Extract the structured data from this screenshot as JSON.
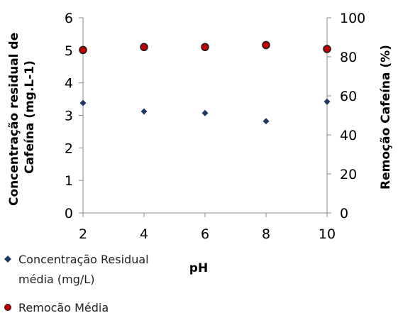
{
  "chart_data": {
    "type": "scatter",
    "xlabel": "pH",
    "ylabel_left": "Concentração residual de Cafeína (mg.L-1)",
    "ylabel_left_lines": [
      "Concentração residual de",
      "Cafeína (mg.L-1)"
    ],
    "ylabel_right": "Remoção Cafeína (%)",
    "xlim": [
      2,
      10
    ],
    "x_ticks": [
      "2",
      "4",
      "6",
      "8",
      "10"
    ],
    "ylim_left": [
      0,
      6
    ],
    "y_left_ticks": [
      "0",
      "1",
      "2",
      "3",
      "4",
      "5",
      "6"
    ],
    "ylim_right": [
      0,
      100
    ],
    "y_right_ticks": [
      "0",
      "20",
      "40",
      "60",
      "80",
      "100"
    ],
    "grid": false,
    "legend_position": "bottom-left",
    "series": [
      {
        "name": "Concentração Residual média (mg/L)",
        "legend_lines": [
          "Concentração Residual",
          "média (mg/L)"
        ],
        "axis": "left",
        "marker": "diamond",
        "color": "#1F3864",
        "x": [
          2,
          4,
          6,
          8,
          10
        ],
        "y": [
          3.38,
          3.12,
          3.07,
          2.82,
          3.42
        ]
      },
      {
        "name": "Remocão Média",
        "legend_lines": [
          "Remocão Média"
        ],
        "axis": "right",
        "marker": "circle",
        "color": "#C00000",
        "x": [
          2,
          4,
          6,
          8,
          10
        ],
        "y": [
          83.5,
          85,
          85,
          86,
          84
        ]
      }
    ]
  }
}
